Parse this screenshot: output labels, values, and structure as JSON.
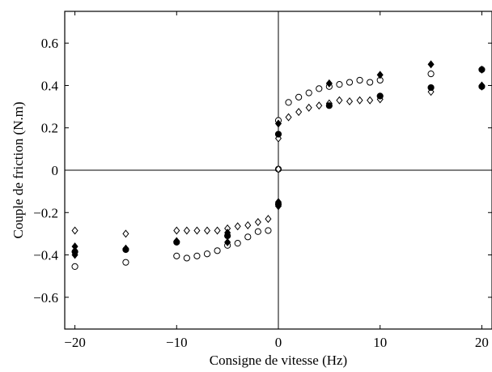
{
  "chart_data": {
    "type": "scatter",
    "title": "",
    "xlabel": "Consigne de vitesse (Hz)",
    "ylabel": "Couple de friction (N.m)",
    "xlim": [
      -21,
      21
    ],
    "ylim": [
      -0.75,
      0.75
    ],
    "xticks": [
      -20,
      -10,
      0,
      10,
      20
    ],
    "xtick_labels": [
      "−20",
      "−10",
      "0",
      "10",
      "20"
    ],
    "yticks": [
      -0.6,
      -0.4,
      -0.2,
      0,
      0.2,
      0.4,
      0.6
    ],
    "ytick_labels": [
      "−0.6",
      "−0.4",
      "−0.2",
      "0",
      "0.2",
      "0.4",
      "0.6"
    ],
    "zero_lines": true,
    "grid": false,
    "legend": "none",
    "series": [
      {
        "marker": "open-circle",
        "points": [
          [
            -20,
            -0.455
          ],
          [
            -15,
            -0.435
          ],
          [
            -10,
            -0.405
          ],
          [
            -9,
            -0.415
          ],
          [
            -8,
            -0.405
          ],
          [
            -7,
            -0.395
          ],
          [
            -6,
            -0.38
          ],
          [
            -5,
            -0.355
          ],
          [
            -4,
            -0.345
          ],
          [
            -3,
            -0.315
          ],
          [
            -2,
            -0.29
          ],
          [
            -1,
            -0.285
          ],
          [
            0,
            0.005
          ],
          [
            0,
            0.235
          ],
          [
            1,
            0.32
          ],
          [
            2,
            0.345
          ],
          [
            3,
            0.365
          ],
          [
            4,
            0.385
          ],
          [
            5,
            0.395
          ],
          [
            6,
            0.405
          ],
          [
            7,
            0.415
          ],
          [
            8,
            0.425
          ],
          [
            9,
            0.415
          ],
          [
            10,
            0.425
          ],
          [
            15,
            0.455
          ],
          [
            20,
            0.475
          ]
        ]
      },
      {
        "marker": "open-diamond",
        "points": [
          [
            -20,
            -0.285
          ],
          [
            -15,
            -0.3
          ],
          [
            -10,
            -0.285
          ],
          [
            -9,
            -0.285
          ],
          [
            -8,
            -0.285
          ],
          [
            -7,
            -0.285
          ],
          [
            -6,
            -0.285
          ],
          [
            -5,
            -0.275
          ],
          [
            -4,
            -0.265
          ],
          [
            -3,
            -0.26
          ],
          [
            -2,
            -0.245
          ],
          [
            -1,
            -0.23
          ],
          [
            0,
            0.005
          ],
          [
            0,
            0.15
          ],
          [
            1,
            0.25
          ],
          [
            2,
            0.275
          ],
          [
            3,
            0.295
          ],
          [
            4,
            0.305
          ],
          [
            5,
            0.315
          ],
          [
            6,
            0.33
          ],
          [
            7,
            0.325
          ],
          [
            8,
            0.33
          ],
          [
            9,
            0.33
          ],
          [
            10,
            0.335
          ],
          [
            15,
            0.37
          ],
          [
            20,
            0.395
          ]
        ]
      },
      {
        "marker": "filled-circle",
        "points": [
          [
            -20,
            -0.385
          ],
          [
            -15,
            -0.375
          ],
          [
            -10,
            -0.34
          ],
          [
            -5,
            -0.31
          ],
          [
            0,
            -0.16
          ],
          [
            0,
            0.17
          ],
          [
            5,
            0.305
          ],
          [
            10,
            0.35
          ],
          [
            15,
            0.39
          ],
          [
            20,
            0.395
          ]
        ]
      },
      {
        "marker": "filled-diamond",
        "points": [
          [
            -20,
            -0.36
          ],
          [
            -20,
            -0.4
          ],
          [
            -15,
            -0.37
          ],
          [
            -10,
            -0.335
          ],
          [
            -5,
            -0.295
          ],
          [
            -5,
            -0.34
          ],
          [
            0,
            -0.15
          ],
          [
            0,
            -0.17
          ],
          [
            0,
            0.22
          ],
          [
            5,
            0.41
          ],
          [
            10,
            0.45
          ],
          [
            15,
            0.5
          ],
          [
            20,
            0.475
          ],
          [
            20,
            0.4
          ]
        ]
      }
    ]
  }
}
